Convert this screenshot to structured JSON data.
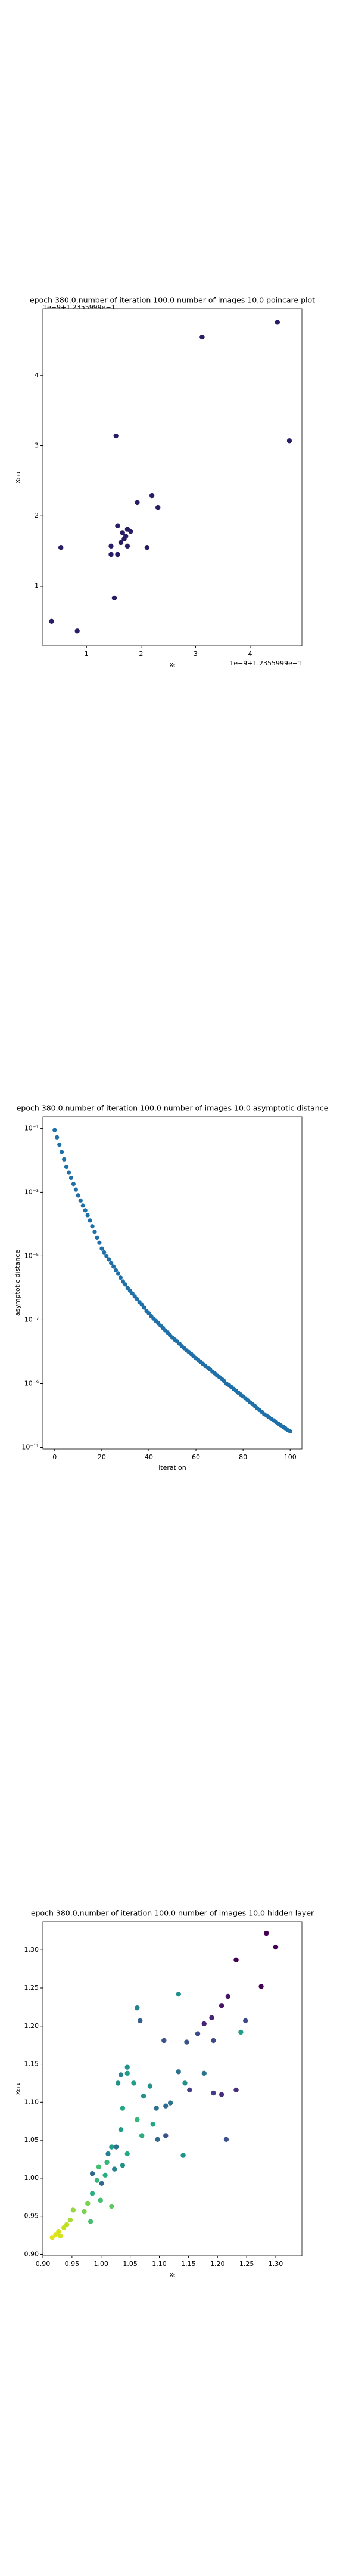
{
  "chart_data": [
    {
      "type": "scatter",
      "title": "epoch 380.0,number of iteration 100.0 number of images 10.0 poincare plot",
      "xlabel": "xₜ",
      "ylabel": "xₜ₊₁",
      "x_offset_label": "1e−9+1.2355999e−1",
      "y_offset_label": "1e−9+1.2355999e−1",
      "color": "#281c64",
      "x": [
        0.36,
        0.83,
        0.53,
        1.54,
        3.12,
        4.5,
        4.72,
        1.51,
        2.2,
        2.31,
        1.93,
        2.11,
        1.45,
        1.45,
        1.57,
        1.57,
        1.66,
        1.75,
        1.69,
        1.63,
        1.72,
        1.75,
        1.81
      ],
      "values": [
        0.5,
        0.36,
        1.55,
        3.14,
        4.55,
        4.76,
        3.07,
        0.83,
        2.29,
        2.12,
        2.19,
        1.55,
        1.57,
        1.45,
        1.86,
        1.45,
        1.76,
        1.81,
        1.67,
        1.62,
        1.71,
        1.57,
        1.78
      ],
      "xlim": [
        0.2,
        4.95
      ],
      "ylim": [
        0.15,
        4.95
      ],
      "xticks": [
        1,
        2,
        3,
        4
      ],
      "yticks": [
        1,
        2,
        3,
        4
      ]
    },
    {
      "type": "scatter",
      "title": "epoch 380.0,number of iteration 100.0  number of images 10.0 asymptotic distance",
      "xlabel": "iteration",
      "ylabel": "asymptotic distance",
      "log_y": true,
      "color": "#1f6fa8",
      "x": [
        0,
        1,
        2,
        3,
        4,
        5,
        6,
        7,
        8,
        9,
        10,
        11,
        12,
        13,
        14,
        15,
        16,
        17,
        18,
        19,
        20,
        21,
        22,
        23,
        24,
        25,
        26,
        27,
        28,
        29,
        30,
        31,
        32,
        33,
        34,
        35,
        36,
        37,
        38,
        39,
        40,
        41,
        42,
        43,
        44,
        45,
        46,
        47,
        48,
        49,
        50,
        51,
        52,
        53,
        54,
        55,
        56,
        57,
        58,
        59,
        60,
        61,
        62,
        63,
        64,
        65,
        66,
        67,
        68,
        69,
        70,
        71,
        72,
        73,
        74,
        75,
        76,
        77,
        78,
        79,
        80,
        81,
        82,
        83,
        84,
        85,
        86,
        87,
        88,
        89,
        90,
        91,
        92,
        93,
        94,
        95,
        96,
        97,
        98,
        99,
        100
      ],
      "values": [
        0.089,
        0.0525,
        0.031,
        0.0182,
        0.0107,
        0.0063,
        0.0042,
        0.0028,
        0.0018,
        0.0012,
        0.00079,
        0.00055,
        0.00038,
        0.00027,
        0.00019,
        0.00013,
        8.5e-05,
        5.8e-05,
        3.8e-05,
        2.6e-05,
        1.7e-05,
        1.3e-05,
        1e-05,
        7.9e-06,
        6e-06,
        4.7e-06,
        3.6e-06,
        2.8e-06,
        2.1e-06,
        1.6e-06,
        1.3e-06,
        1e-06,
        8.3e-07,
        6.8e-07,
        5.5e-07,
        4.5e-07,
        3.6e-07,
        3e-07,
        2.4e-07,
        1.9e-07,
        1.6e-07,
        1.3e-07,
        1.1e-07,
        9.3e-08,
        7.9e-08,
        6.6e-08,
        5.6e-08,
        4.7e-08,
        4e-08,
        3.3e-08,
        2.8e-08,
        2.4e-08,
        2.1e-08,
        1.8e-08,
        1.5e-08,
        1.3e-08,
        1.1e-08,
        9.8e-09,
        8.5e-09,
        7.2e-09,
        6.3e-09,
        5.5e-09,
        4.8e-09,
        4.2e-09,
        3.6e-09,
        3.2e-09,
        2.8e-09,
        2.4e-09,
        2.1e-09,
        1.8e-09,
        1.6e-09,
        1.4e-09,
        1.2e-09,
        1e-09,
        9.1e-10,
        7.9e-10,
        6.9e-10,
        6e-10,
        5.2e-10,
        4.6e-10,
        4e-10,
        3.5e-10,
        3e-10,
        2.6e-10,
        2.3e-10,
        2e-10,
        1.7e-10,
        1.5e-10,
        1.3e-10,
        1.1e-10,
        1e-10,
        8.9e-11,
        7.9e-11,
        7.1e-11,
        6.3e-11,
        5.6e-11,
        5e-11,
        4.5e-11,
        4e-11,
        3.5e-11,
        3.2e-11
      ],
      "xlim": [
        -5,
        105
      ],
      "ylim": [
        9e-12,
        0.23
      ],
      "xticks": [
        0,
        20,
        40,
        60,
        80,
        100
      ],
      "yticks": [
        {
          "value": 0.1,
          "label": "10⁻¹"
        },
        {
          "value": 0.001,
          "label": "10⁻³"
        },
        {
          "value": 1e-05,
          "label": "10⁻⁵"
        },
        {
          "value": 1e-07,
          "label": "10⁻⁷"
        },
        {
          "value": 1e-09,
          "label": "10⁻⁹"
        },
        {
          "value": 1e-11,
          "label": "10⁻¹¹"
        }
      ]
    },
    {
      "type": "scatter",
      "title": "epoch 380.0,number of iteration 100.0  number of images 10.0 hidden layer",
      "xlabel": "xₜ",
      "ylabel": "xₜ₊₁",
      "x": [
        1.284,
        1.3,
        1.275,
        1.232,
        1.218,
        1.207,
        1.19,
        1.177,
        1.248,
        1.193,
        1.166,
        1.147,
        1.108,
        1.067,
        1.232,
        1.207,
        1.193,
        1.152,
        1.215,
        1.111,
        1.097,
        1.062,
        1.133,
        1.24,
        1.177,
        1.133,
        1.144,
        1.111,
        1.119,
        1.095,
        1.084,
        1.073,
        1.045,
        1.034,
        1.029,
        1.045,
        1.056,
        1.07,
        1.089,
        1.141,
        1.062,
        1.037,
        1.034,
        1.026,
        1.045,
        1.037,
        1.023,
        1.012,
        1.018,
        1.007,
        1.001,
        0.993,
        0.996,
        1.01,
        0.985,
        0.999,
        0.985,
        1.018,
        0.977,
        0.971,
        0.952,
        0.947,
        0.941,
        0.936,
        0.927,
        0.922,
        0.916,
        0.93,
        0.982
      ],
      "values": [
        1.322,
        1.304,
        1.252,
        1.287,
        1.239,
        1.227,
        1.211,
        1.203,
        1.207,
        1.181,
        1.19,
        1.179,
        1.181,
        1.207,
        1.116,
        1.11,
        1.112,
        1.116,
        1.051,
        1.056,
        1.051,
        1.224,
        1.242,
        1.192,
        1.138,
        1.14,
        1.125,
        1.095,
        1.099,
        1.092,
        1.121,
        1.108,
        1.146,
        1.136,
        1.125,
        1.138,
        1.125,
        1.056,
        1.071,
        1.03,
        1.077,
        1.092,
        1.064,
        1.041,
        1.032,
        1.017,
        1.012,
        1.032,
        1.041,
        1.004,
        0.993,
        0.997,
        1.015,
        1.021,
        0.98,
        0.971,
        1.006,
        0.963,
        0.967,
        0.956,
        0.958,
        0.945,
        0.939,
        0.935,
        0.93,
        0.926,
        0.922,
        0.924,
        0.943
      ],
      "colors": [
        "#440154",
        "#440154",
        "#440154",
        "#440154",
        "#481467",
        "#481467",
        "#482475",
        "#482475",
        "#3e4989",
        "#3e4989",
        "#3e4989",
        "#3b528b",
        "#3b528b",
        "#355f8d",
        "#472d7b",
        "#472d7b",
        "#433e85",
        "#433e85",
        "#3b528b",
        "#3b528b",
        "#31688e",
        "#26828e",
        "#21918c",
        "#1f9e89",
        "#2c728e",
        "#2c728e",
        "#21918c",
        "#31688e",
        "#2c728e",
        "#2c728e",
        "#21918c",
        "#21918c",
        "#21918c",
        "#26828e",
        "#21918c",
        "#1f9e89",
        "#1f9e89",
        "#28ae80",
        "#22a884",
        "#21918c",
        "#35b779",
        "#22a884",
        "#1f9e89",
        "#2c728e",
        "#22a884",
        "#21918c",
        "#26828e",
        "#26828e",
        "#1f9e89",
        "#28ae80",
        "#31688e",
        "#35b779",
        "#44bf70",
        "#35b779",
        "#28ae80",
        "#44bf70",
        "#31688e",
        "#5ec962",
        "#7ad151",
        "#7ad151",
        "#95d840",
        "#addc30",
        "#bddf26",
        "#c8e020",
        "#d8e219",
        "#dde318",
        "#e5e419",
        "#d2e21b",
        "#44bf70"
      ],
      "xlim": [
        0.9,
        1.345
      ],
      "ylim": [
        0.898,
        1.337
      ],
      "xticks": [
        {
          "value": 0.9,
          "label": "0.90"
        },
        0.95,
        {
          "value": 1.0,
          "label": "1.00"
        },
        1.05,
        {
          "value": 1.1,
          "label": "1.10"
        },
        1.15,
        {
          "value": 1.2,
          "label": "1.20"
        },
        1.25,
        {
          "value": 1.3,
          "label": "1.30"
        }
      ],
      "yticks": [
        {
          "value": 0.9,
          "label": "0.90"
        },
        0.95,
        {
          "value": 1.0,
          "label": "1.00"
        },
        1.05,
        {
          "value": 1.1,
          "label": "1.10"
        },
        1.15,
        {
          "value": 1.2,
          "label": "1.20"
        },
        1.25,
        {
          "value": 1.3,
          "label": "1.30"
        }
      ]
    }
  ]
}
